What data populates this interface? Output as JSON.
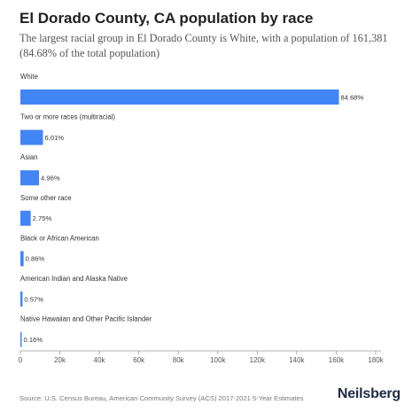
{
  "title": "El Dorado County, CA population by race",
  "subtitle": "The largest racial group in El Dorado County is White, with a population of 161,381 (84.68% of the total population)",
  "source": "Source: U.S. Census Bureau, American Community Survey (ACS) 2017-2021 5-Year Estimates",
  "brand": "Neilsberg",
  "colors": {
    "bar": "#4285f4",
    "axis": "#999999",
    "label": "#333333",
    "tick": "#555555"
  },
  "chart_data": {
    "type": "bar",
    "orientation": "horizontal",
    "categories": [
      "White",
      "Two or more races (multiracial)",
      "Asian",
      "Some other race",
      "Black or African American",
      "American Indian and Alaska Native",
      "Native Hawaiian and Other Pacific Islander"
    ],
    "values": [
      161381,
      11455,
      9450,
      5240,
      1640,
      1090,
      305
    ],
    "data_labels": [
      "84.68%",
      "6.01%",
      "4.96%",
      "2.75%",
      "0.86%",
      "0.57%",
      "0.16%"
    ],
    "xlim": [
      0,
      180000
    ],
    "xticks": [
      0,
      20000,
      40000,
      60000,
      80000,
      100000,
      120000,
      140000,
      160000,
      180000
    ],
    "xtick_labels": [
      "0",
      "20k",
      "40k",
      "60k",
      "80k",
      "100k",
      "120k",
      "140k",
      "160k",
      "180k"
    ],
    "grid": false,
    "legend": "none"
  }
}
